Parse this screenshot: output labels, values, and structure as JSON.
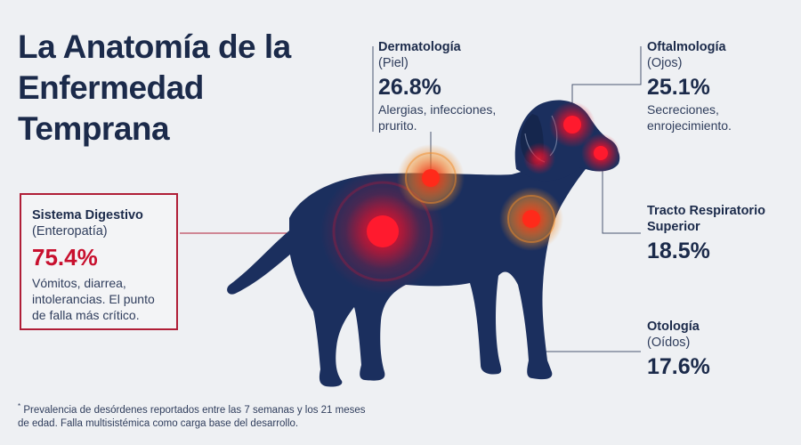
{
  "title": "La Anatomía de la Enfermedad Temprana",
  "callouts": {
    "dermatologia": {
      "name": "Dermatología",
      "sub": "(Piel)",
      "pct": "26.8%",
      "desc": "Alergias, infecciones, prurito."
    },
    "oftalmologia": {
      "name": "Oftalmología",
      "sub": "(Ojos)",
      "pct": "25.1%",
      "desc": "Secreciones, enrojecimiento."
    },
    "digestivo": {
      "name": "Sistema Digestivo",
      "sub": "(Enteropatía)",
      "pct": "75.4%",
      "desc": "Vómitos, diarrea, intolerancias. El punto de falla más crítico."
    },
    "respiratorio": {
      "name": "Tracto Respiratorio Superior",
      "pct": "18.5%"
    },
    "otologia": {
      "name": "Otología",
      "sub": "(Oídos)",
      "pct": "17.6%"
    }
  },
  "footnote": {
    "marker": "*",
    "text": "Prevalencia de desórdenes reportados entre las 7 semanas y los 21 meses de edad. Falla multisistémica como carga base del desarrollo."
  },
  "colors": {
    "background": "#eef0f3",
    "dog": "#1b2f5e",
    "text": "#1b2a4a",
    "accent_red": "#c8102e",
    "hotspot_red": "#e8102a",
    "hotspot_orange": "#f28c28"
  },
  "chart_data": {
    "type": "table",
    "series": [
      {
        "values": [
          {
            "label": "Sistema Digestivo",
            "value": 75.4
          },
          {
            "label": "Dermatología",
            "value": 26.8
          },
          {
            "label": "Oftalmología",
            "value": 25.1
          },
          {
            "label": "Tracto Respiratorio Superior",
            "value": 18.5
          },
          {
            "label": "Otología",
            "value": 17.6
          }
        ]
      }
    ]
  }
}
